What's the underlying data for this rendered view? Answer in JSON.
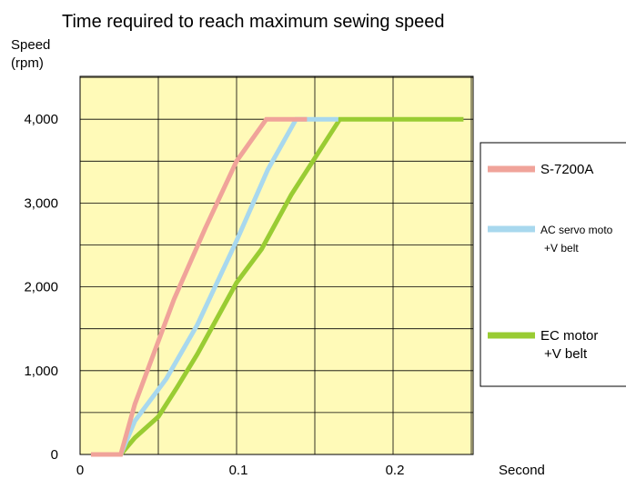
{
  "chart_data": {
    "type": "line",
    "title": "Time required to reach maximum sewing speed",
    "ylabel_line1": "Speed",
    "ylabel_line2": "(rpm)",
    "xlabel": "Second",
    "xlim": [
      0,
      0.29
    ],
    "ylim": [
      0,
      4600
    ],
    "grid": true,
    "plot_background": "#FFFAB8",
    "x_ticks": [
      {
        "value": 0,
        "label": "0"
      },
      {
        "value": 0.1,
        "label": "0.1"
      },
      {
        "value": 0.2,
        "label": "0.2"
      }
    ],
    "y_ticks": [
      {
        "value": 0,
        "label": "0"
      },
      {
        "value": 1000,
        "label": "1,000"
      },
      {
        "value": 2000,
        "label": "2,000"
      },
      {
        "value": 3000,
        "label": "3,000"
      },
      {
        "value": 4000,
        "label": "4,000"
      }
    ],
    "legend_position": "right",
    "series": [
      {
        "name": "S-7200A",
        "name_lines": [
          "S-7200A"
        ],
        "color": "#F0A39A",
        "points": [
          [
            0.007,
            0
          ],
          [
            0.026,
            0
          ],
          [
            0.035,
            600
          ],
          [
            0.06,
            1850
          ],
          [
            0.08,
            2700
          ],
          [
            0.1,
            3500
          ],
          [
            0.119,
            4000
          ],
          [
            0.145,
            4000
          ]
        ]
      },
      {
        "name": "AC servo moto +V belt",
        "name_lines": [
          "AC servo moto",
          "+V belt"
        ],
        "color": "#A8D8EE",
        "points": [
          [
            0.007,
            0
          ],
          [
            0.026,
            0
          ],
          [
            0.035,
            400
          ],
          [
            0.055,
            900
          ],
          [
            0.075,
            1550
          ],
          [
            0.1,
            2550
          ],
          [
            0.12,
            3400
          ],
          [
            0.138,
            4000
          ],
          [
            0.165,
            4000
          ]
        ]
      },
      {
        "name": "EC motor +V belt",
        "name_lines": [
          "EC motor",
          "+V belt"
        ],
        "color": "#99CC33",
        "points": [
          [
            0.007,
            0
          ],
          [
            0.026,
            0
          ],
          [
            0.035,
            200
          ],
          [
            0.05,
            450
          ],
          [
            0.062,
            800
          ],
          [
            0.075,
            1200
          ],
          [
            0.1,
            2050
          ],
          [
            0.116,
            2450
          ],
          [
            0.135,
            3100
          ],
          [
            0.166,
            4000
          ],
          [
            0.245,
            4000
          ]
        ]
      }
    ]
  }
}
